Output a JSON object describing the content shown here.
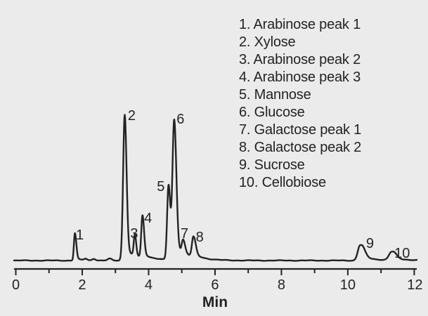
{
  "colors": {
    "background": "#ebebeb",
    "ink": "#232323"
  },
  "legend": {
    "items": [
      {
        "number": "1.",
        "name": "Arabinose peak 1"
      },
      {
        "number": "2.",
        "name": "Xylose"
      },
      {
        "number": "3.",
        "name": "Arabinose peak 2"
      },
      {
        "number": "4.",
        "name": "Arabinose peak 3"
      },
      {
        "number": "5.",
        "name": "Mannose"
      },
      {
        "number": "6.",
        "name": "Glucose"
      },
      {
        "number": "7.",
        "name": "Galactose peak 1"
      },
      {
        "number": "8.",
        "name": "Galactose peak 2"
      },
      {
        "number": "9.",
        "name": "Sucrose"
      },
      {
        "number": "10.",
        "name": "Cellobiose"
      }
    ]
  },
  "axis": {
    "label": "Min",
    "min": 0,
    "max": 12,
    "major_ticks": [
      0,
      2,
      4,
      6,
      8,
      10,
      12
    ],
    "minor_ticks": [
      1,
      3,
      5,
      7,
      9,
      11
    ]
  },
  "chart_data": {
    "type": "line",
    "title": "",
    "xlabel": "Min",
    "ylabel": "",
    "x_range": [
      0,
      12
    ],
    "ylim_rel": [
      0,
      110
    ],
    "grid": false,
    "legend_position": "top-right",
    "peaks": [
      {
        "label": "1",
        "name": "Arabinose peak 1",
        "rt_min": 1.78,
        "rel_height": 18.7,
        "sigma_left": 0.03,
        "sigma_right": 0.042,
        "tail_height": 1.4,
        "tail_tau": 0.2,
        "label_dx": 7,
        "label_dy": 9
      },
      {
        "label": "2",
        "name": "Xylose",
        "rt_min": 3.28,
        "rel_height": 99.5,
        "sigma_left": 0.048,
        "sigma_right": 0.055,
        "tail_height": 7.0,
        "tail_tau": 0.45,
        "label_dx": 10,
        "label_dy": 8
      },
      {
        "label": "3",
        "name": "Arabinose peak 2",
        "rt_min": 3.585,
        "rel_height": 14.4,
        "sigma_left": 0.032,
        "sigma_right": 0.04,
        "tail_height": 0,
        "tail_tau": 0.2,
        "label_dx": -1,
        "label_dy": -2
      },
      {
        "label": "4",
        "name": "Arabinose peak 3",
        "rt_min": 3.815,
        "rel_height": 28.7,
        "sigma_left": 0.036,
        "sigma_right": 0.048,
        "tail_height": 2.9,
        "tail_tau": 0.25,
        "label_dx": 8,
        "label_dy": 6
      },
      {
        "label": "5",
        "name": "Mannose",
        "rt_min": 4.6,
        "rel_height": 50.7,
        "sigma_left": 0.042,
        "sigma_right": 0.052,
        "tail_height": 0,
        "tail_tau": 0.2,
        "label_dx": -11,
        "label_dy": 7
      },
      {
        "label": "6",
        "name": "Glucose",
        "rt_min": 4.77,
        "rel_height": 95.7,
        "sigma_left": 0.052,
        "sigma_right": 0.062,
        "tail_height": 11.5,
        "tail_tau": 0.3,
        "label_dx": 9,
        "label_dy": 5
      },
      {
        "label": "7",
        "name": "Galactose peak 1",
        "rt_min": 5.04,
        "rel_height": 9.6,
        "sigma_left": 0.042,
        "sigma_right": 0.055,
        "tail_height": 1.9,
        "tail_tau": 0.3,
        "label_dx": 2,
        "label_dy": -12
      },
      {
        "label": "8",
        "name": "Galactose peak 2",
        "rt_min": 5.35,
        "rel_height": 13.9,
        "sigma_left": 0.045,
        "sigma_right": 0.065,
        "tail_height": 2.4,
        "tail_tau": 0.35,
        "label_dx": 9,
        "label_dy": 2
      },
      {
        "label": "9",
        "name": "Sucrose",
        "rt_min": 10.37,
        "rel_height": 10.5,
        "sigma_left": 0.07,
        "sigma_right": 0.12,
        "tail_height": 2.4,
        "tail_tau": 0.45,
        "label_dx": 14,
        "label_dy": 4
      },
      {
        "label": "10",
        "name": "Cellobiose",
        "rt_min": 11.32,
        "rel_height": 5.7,
        "sigma_left": 0.08,
        "sigma_right": 0.12,
        "tail_height": 1.4,
        "tail_tau": 0.45,
        "label_dx": 15,
        "label_dy": 8
      }
    ],
    "baseline_bumps": [
      {
        "rt_min": 2.1,
        "rel_height": 1.0,
        "sigma": 0.045
      },
      {
        "rt_min": 2.35,
        "rel_height": 1.2,
        "sigma": 0.05
      },
      {
        "rt_min": 2.83,
        "rel_height": 1.2,
        "sigma": 0.06
      }
    ]
  }
}
